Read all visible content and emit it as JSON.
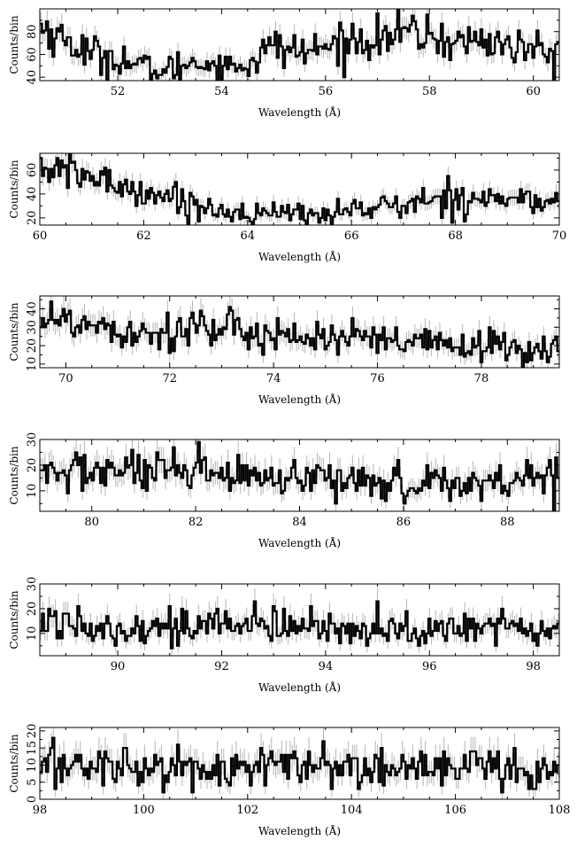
{
  "colors": {
    "histogram": "#000000",
    "error_bars": "#b5b5b5",
    "frame": "#000000",
    "background": "#ffffff"
  },
  "chart_data": [
    {
      "type": "line",
      "style": "step-histogram-with-error-bars",
      "grid": false,
      "xlabel": "Wavelength (Å)",
      "ylabel": "Counts/bin",
      "xlim": [
        50.5,
        60.5
      ],
      "ylim": [
        37,
        100
      ],
      "xticks": [
        "52",
        "54",
        "56",
        "58",
        "60"
      ],
      "yticks": [
        "40",
        "60",
        "80"
      ],
      "x": [
        50.5,
        51.0,
        51.5,
        52.0,
        52.5,
        53.0,
        53.5,
        54.0,
        54.5,
        55.0,
        55.5,
        56.0,
        56.5,
        57.0,
        57.5,
        58.0,
        58.5,
        59.0,
        59.5,
        60.0,
        60.5
      ],
      "y": [
        85,
        72,
        60,
        57,
        48,
        46,
        55,
        48,
        52,
        68,
        62,
        66,
        72,
        74,
        80,
        76,
        70,
        73,
        68,
        64,
        57
      ]
    },
    {
      "type": "line",
      "style": "step-histogram-with-error-bars",
      "grid": false,
      "xlabel": "Wavelength (Å)",
      "ylabel": "Counts/bin",
      "xlim": [
        60,
        70
      ],
      "ylim": [
        14,
        74
      ],
      "xticks": [
        "60",
        "62",
        "64",
        "66",
        "68",
        "70"
      ],
      "yticks": [
        "20",
        "40",
        "60"
      ],
      "x": [
        60.0,
        60.5,
        61.0,
        61.5,
        62.0,
        62.5,
        63.0,
        63.5,
        64.0,
        64.5,
        65.0,
        65.5,
        66.0,
        66.5,
        67.0,
        67.5,
        68.0,
        68.5,
        69.0,
        69.5,
        70.0
      ],
      "y": [
        62,
        58,
        54,
        47,
        42,
        38,
        30,
        26,
        24,
        23,
        24,
        23,
        27,
        29,
        30,
        35,
        38,
        37,
        36,
        34,
        31
      ]
    },
    {
      "type": "line",
      "style": "step-histogram-with-error-bars",
      "grid": false,
      "xlabel": "Wavelength (Å)",
      "ylabel": "Counts/bin",
      "xlim": [
        69.5,
        79.5
      ],
      "ylim": [
        8,
        47
      ],
      "xticks": [
        "70",
        "72",
        "74",
        "76",
        "78"
      ],
      "yticks": [
        "10",
        "20",
        "30",
        "40"
      ],
      "x": [
        69.5,
        70.0,
        70.5,
        71.0,
        71.5,
        72.0,
        72.5,
        73.0,
        73.5,
        74.0,
        74.5,
        75.0,
        75.5,
        76.0,
        76.5,
        77.0,
        77.5,
        78.0,
        78.5,
        79.0,
        79.5
      ],
      "y": [
        38,
        32,
        33,
        29,
        28,
        27,
        32,
        26,
        28,
        27,
        25,
        24,
        24,
        22,
        21,
        21,
        20,
        20,
        19,
        18,
        18
      ]
    },
    {
      "type": "line",
      "style": "step-histogram-with-error-bars",
      "grid": false,
      "xlabel": "Wavelength (Å)",
      "ylabel": "Counts/bin",
      "xlim": [
        79,
        89
      ],
      "ylim": [
        2,
        30
      ],
      "xticks": [
        "80",
        "82",
        "84",
        "86",
        "88"
      ],
      "yticks": [
        "10",
        "20",
        "30"
      ],
      "x": [
        79.0,
        79.5,
        80.0,
        80.5,
        81.0,
        81.5,
        82.0,
        82.5,
        83.0,
        83.5,
        84.0,
        84.5,
        85.0,
        85.5,
        86.0,
        86.5,
        87.0,
        87.5,
        88.0,
        88.5,
        89.0
      ],
      "y": [
        16,
        17,
        18,
        18,
        17,
        16,
        17,
        16,
        15,
        14,
        13,
        14,
        15,
        14,
        12,
        14,
        13,
        13,
        14,
        16,
        16
      ]
    },
    {
      "type": "line",
      "style": "step-histogram-with-error-bars",
      "grid": false,
      "xlabel": "Wavelength (Å)",
      "ylabel": "Counts/bin",
      "xlim": [
        88.5,
        98.5
      ],
      "ylim": [
        1,
        30
      ],
      "xticks": [
        "90",
        "92",
        "94",
        "96",
        "98"
      ],
      "yticks": [
        "10",
        "20",
        "30"
      ],
      "x": [
        88.5,
        89.0,
        89.5,
        90.0,
        90.5,
        91.0,
        91.5,
        92.0,
        92.5,
        93.0,
        93.5,
        94.0,
        94.5,
        95.0,
        95.5,
        96.0,
        96.5,
        97.0,
        97.5,
        98.0,
        98.5
      ],
      "y": [
        14,
        15,
        14,
        13,
        13,
        12,
        13,
        14,
        13,
        13,
        12,
        12,
        13,
        12,
        11,
        11,
        11,
        12,
        13,
        12,
        12
      ]
    },
    {
      "type": "line",
      "style": "step-histogram-with-error-bars",
      "grid": false,
      "xlabel": "Wavelength (Å)",
      "ylabel": "Counts/bin",
      "xlim": [
        98,
        108
      ],
      "ylim": [
        0,
        21
      ],
      "xticks": [
        "98",
        "100",
        "102",
        "104",
        "106",
        "108"
      ],
      "yticks": [
        "0",
        "5",
        "10",
        "15",
        "20"
      ],
      "x": [
        98.0,
        98.5,
        99.0,
        99.5,
        100.0,
        100.5,
        101.0,
        101.5,
        102.0,
        102.5,
        103.0,
        103.5,
        104.0,
        104.5,
        105.0,
        105.5,
        106.0,
        106.5,
        107.0,
        107.5,
        108.0
      ],
      "y": [
        9,
        10,
        10,
        10,
        9,
        9,
        9,
        9,
        9,
        10,
        10,
        9,
        9,
        9,
        9,
        9,
        9,
        9,
        9,
        8,
        8
      ]
    }
  ]
}
